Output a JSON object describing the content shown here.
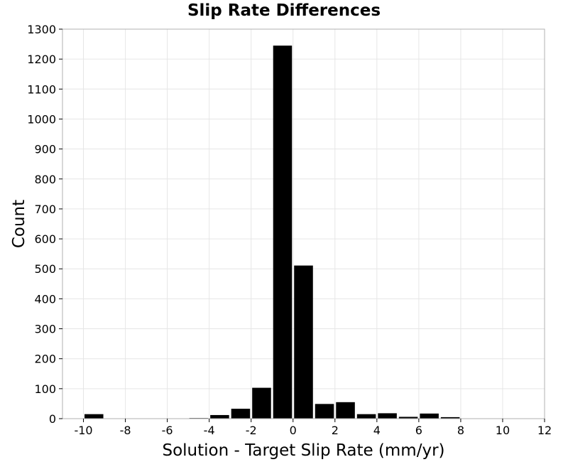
{
  "chart_data": {
    "type": "bar",
    "title": "Slip Rate Differences",
    "xlabel": "Solution - Target Slip Rate (mm/yr)",
    "ylabel": "Count",
    "xlim": [
      -11,
      12
    ],
    "ylim": [
      0,
      1300
    ],
    "xticks": [
      -10,
      -8,
      -6,
      -4,
      -2,
      0,
      2,
      4,
      6,
      8,
      10,
      12
    ],
    "yticks": [
      0,
      100,
      200,
      300,
      400,
      500,
      600,
      700,
      800,
      900,
      1000,
      1100,
      1200,
      1300
    ],
    "bin_width": 1,
    "grid": true,
    "bar_color": "#000000",
    "bins": [
      {
        "center": -9.5,
        "count": 15
      },
      {
        "center": -4.5,
        "count": 2
      },
      {
        "center": -3.5,
        "count": 12
      },
      {
        "center": -2.5,
        "count": 33
      },
      {
        "center": -1.5,
        "count": 103
      },
      {
        "center": -0.5,
        "count": 1245
      },
      {
        "center": 0.5,
        "count": 511
      },
      {
        "center": 1.5,
        "count": 49
      },
      {
        "center": 2.5,
        "count": 55
      },
      {
        "center": 3.5,
        "count": 15
      },
      {
        "center": 4.5,
        "count": 18
      },
      {
        "center": 5.5,
        "count": 6
      },
      {
        "center": 6.5,
        "count": 17
      },
      {
        "center": 7.5,
        "count": 5
      }
    ]
  }
}
